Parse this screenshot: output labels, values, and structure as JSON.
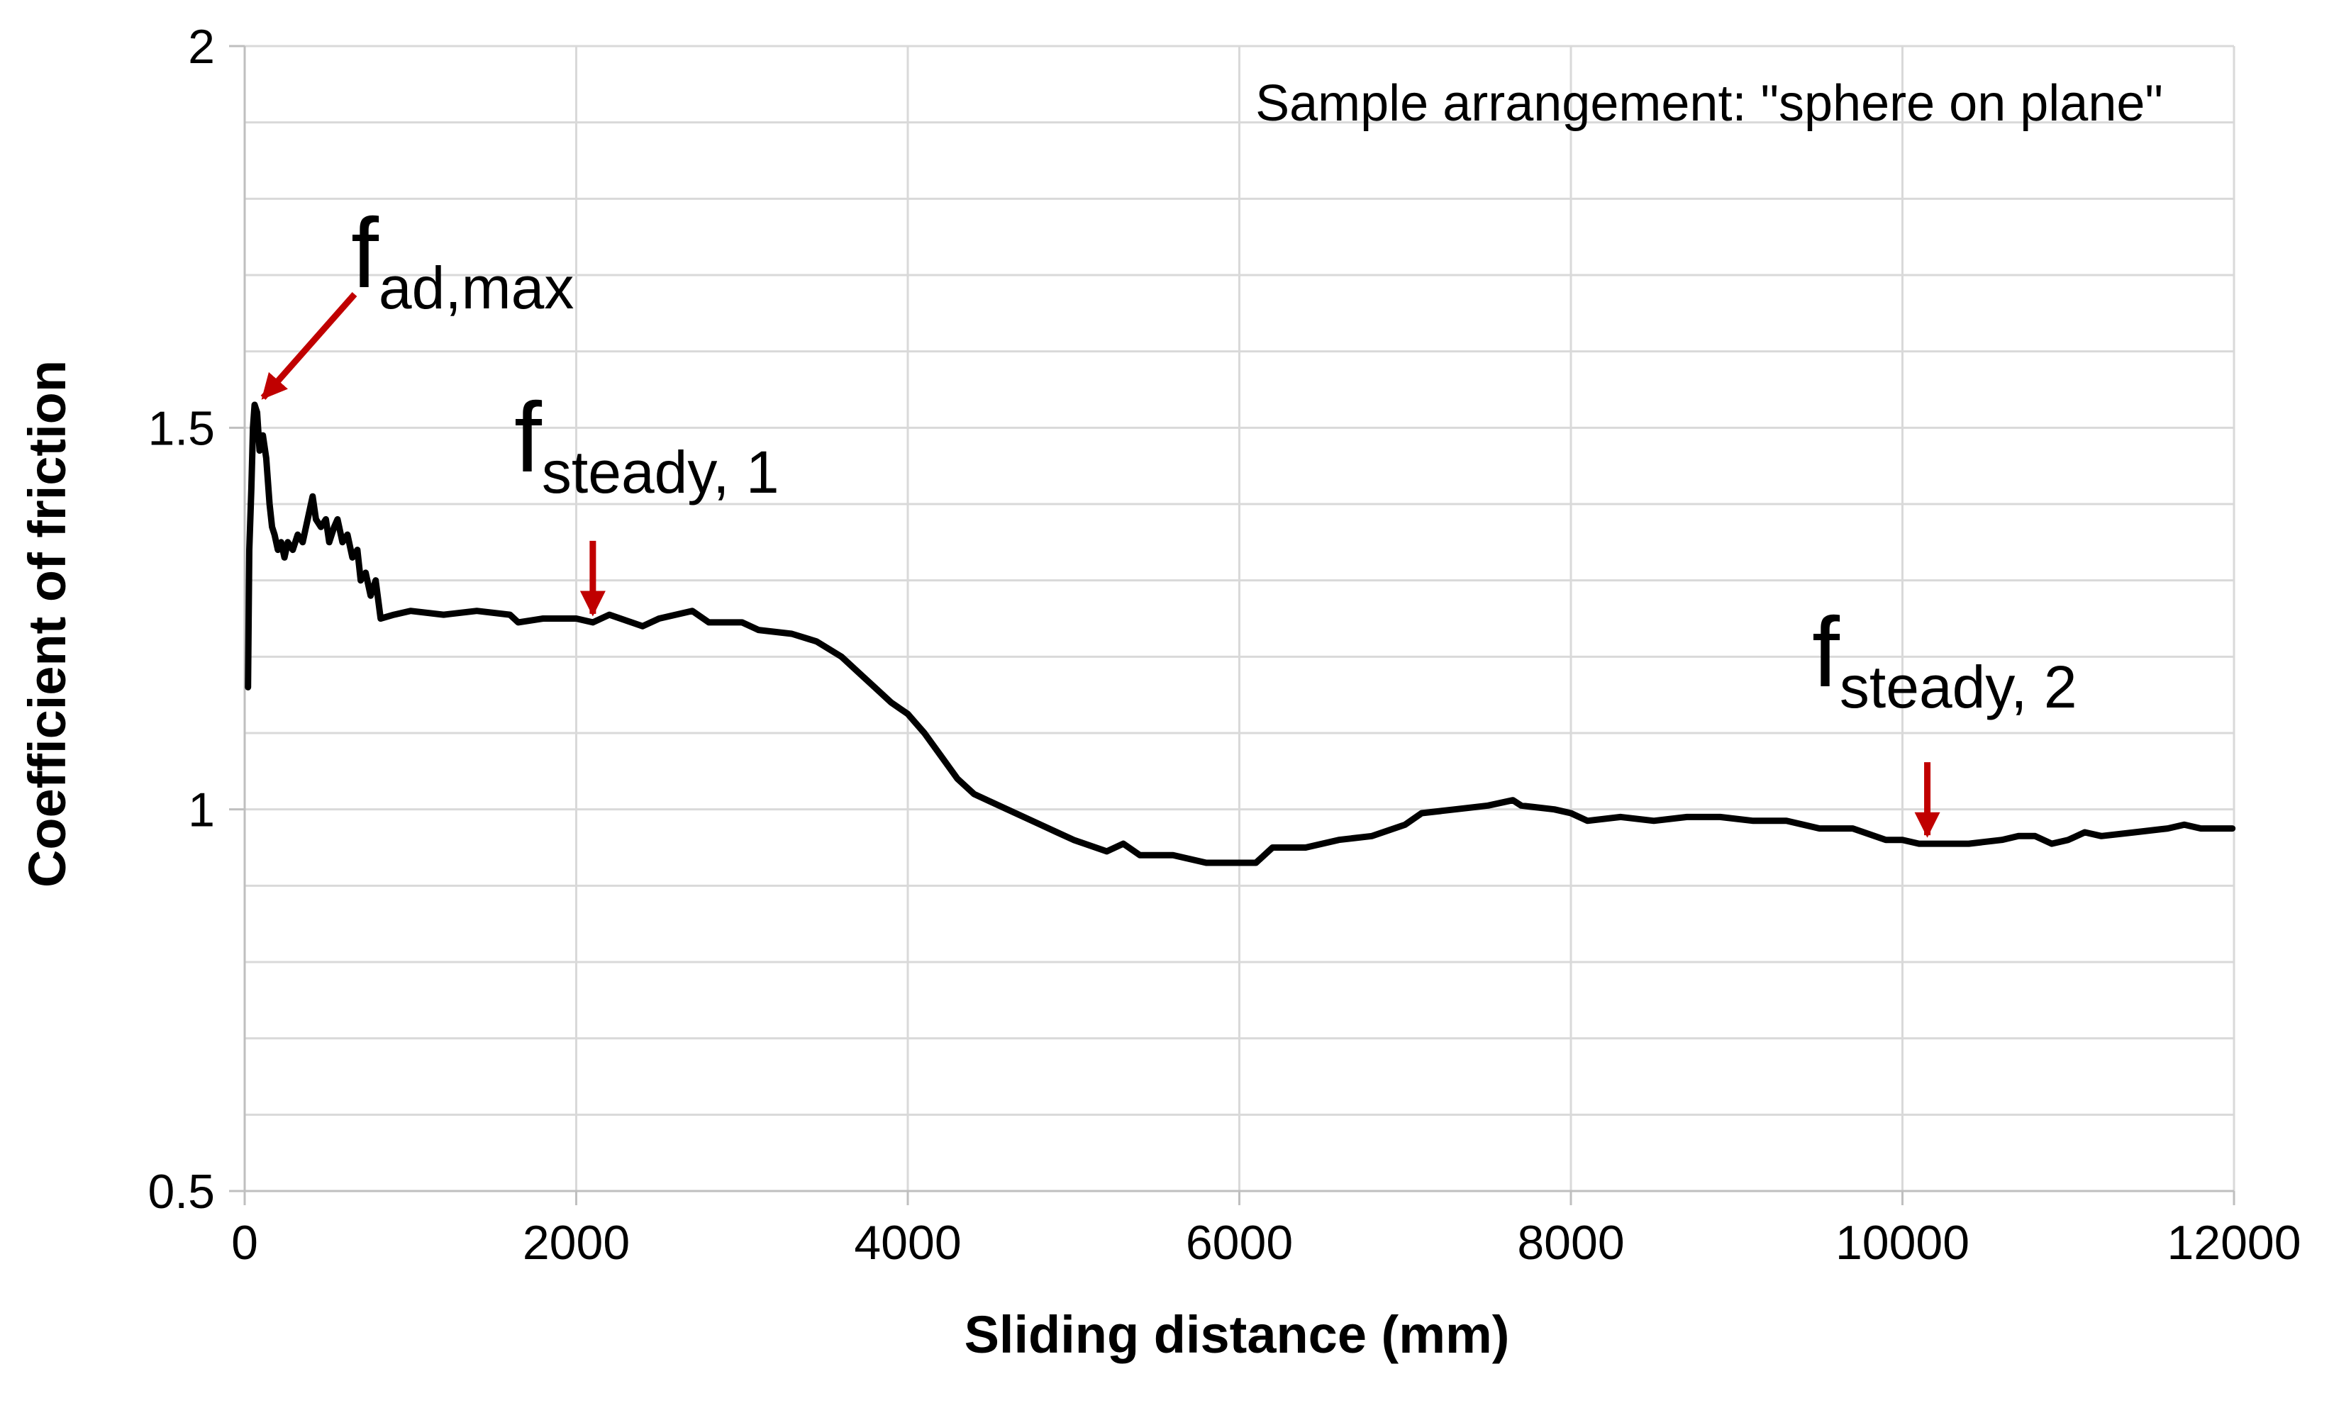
{
  "chart_data": {
    "type": "line",
    "title": "",
    "xlabel": "Sliding distance (mm)",
    "ylabel": "Coefficient of friction",
    "xlim": [
      0,
      12000
    ],
    "ylim": [
      0.5,
      2
    ],
    "xticks": [
      0,
      2000,
      4000,
      6000,
      8000,
      10000,
      12000
    ],
    "xtick_labels": [
      "0",
      "2000",
      "4000",
      "6000",
      "8000",
      "10000",
      "12000"
    ],
    "yticks": [
      0.5,
      1,
      1.5,
      2
    ],
    "ytick_labels": [
      "0.5",
      "1",
      "1.5",
      "2"
    ],
    "grid": true,
    "legend": "none",
    "note": "Sample arrangement: \"sphere on plane\"",
    "series": [
      {
        "name": "Coefficient of friction",
        "color": "#000000",
        "points": [
          [
            20,
            1.16
          ],
          [
            28,
            1.34
          ],
          [
            40,
            1.42
          ],
          [
            50,
            1.5
          ],
          [
            60,
            1.53
          ],
          [
            75,
            1.52
          ],
          [
            90,
            1.47
          ],
          [
            110,
            1.49
          ],
          [
            130,
            1.46
          ],
          [
            150,
            1.4
          ],
          [
            165,
            1.37
          ],
          [
            180,
            1.36
          ],
          [
            200,
            1.34
          ],
          [
            220,
            1.35
          ],
          [
            240,
            1.33
          ],
          [
            260,
            1.35
          ],
          [
            290,
            1.34
          ],
          [
            320,
            1.36
          ],
          [
            350,
            1.35
          ],
          [
            380,
            1.38
          ],
          [
            410,
            1.41
          ],
          [
            430,
            1.38
          ],
          [
            460,
            1.37
          ],
          [
            490,
            1.38
          ],
          [
            510,
            1.35
          ],
          [
            540,
            1.37
          ],
          [
            560,
            1.38
          ],
          [
            590,
            1.35
          ],
          [
            620,
            1.36
          ],
          [
            650,
            1.33
          ],
          [
            680,
            1.34
          ],
          [
            700,
            1.3
          ],
          [
            730,
            1.31
          ],
          [
            760,
            1.28
          ],
          [
            790,
            1.3
          ],
          [
            820,
            1.25
          ],
          [
            900,
            1.255
          ],
          [
            1000,
            1.26
          ],
          [
            1200,
            1.255
          ],
          [
            1400,
            1.26
          ],
          [
            1600,
            1.255
          ],
          [
            1650,
            1.245
          ],
          [
            1800,
            1.25
          ],
          [
            2000,
            1.25
          ],
          [
            2100,
            1.245
          ],
          [
            2200,
            1.255
          ],
          [
            2400,
            1.24
          ],
          [
            2500,
            1.25
          ],
          [
            2700,
            1.26
          ],
          [
            2800,
            1.245
          ],
          [
            3000,
            1.245
          ],
          [
            3100,
            1.235
          ],
          [
            3300,
            1.23
          ],
          [
            3450,
            1.22
          ],
          [
            3600,
            1.2
          ],
          [
            3700,
            1.18
          ],
          [
            3800,
            1.16
          ],
          [
            3900,
            1.14
          ],
          [
            4000,
            1.125
          ],
          [
            4100,
            1.1
          ],
          [
            4200,
            1.07
          ],
          [
            4300,
            1.04
          ],
          [
            4400,
            1.02
          ],
          [
            4600,
            1.0
          ],
          [
            4800,
            0.98
          ],
          [
            4900,
            0.97
          ],
          [
            5000,
            0.96
          ],
          [
            5200,
            0.945
          ],
          [
            5300,
            0.955
          ],
          [
            5400,
            0.94
          ],
          [
            5600,
            0.94
          ],
          [
            5800,
            0.93
          ],
          [
            6000,
            0.93
          ],
          [
            6100,
            0.93
          ],
          [
            6200,
            0.95
          ],
          [
            6400,
            0.95
          ],
          [
            6600,
            0.96
          ],
          [
            6800,
            0.965
          ],
          [
            7000,
            0.98
          ],
          [
            7100,
            0.995
          ],
          [
            7300,
            1.0
          ],
          [
            7500,
            1.005
          ],
          [
            7650,
            1.012
          ],
          [
            7700,
            1.005
          ],
          [
            7900,
            1.0
          ],
          [
            8000,
            0.995
          ],
          [
            8100,
            0.985
          ],
          [
            8300,
            0.99
          ],
          [
            8500,
            0.985
          ],
          [
            8700,
            0.99
          ],
          [
            8900,
            0.99
          ],
          [
            9100,
            0.985
          ],
          [
            9300,
            0.985
          ],
          [
            9500,
            0.975
          ],
          [
            9700,
            0.975
          ],
          [
            9900,
            0.96
          ],
          [
            10000,
            0.96
          ],
          [
            10100,
            0.955
          ],
          [
            10200,
            0.955
          ],
          [
            10400,
            0.955
          ],
          [
            10600,
            0.96
          ],
          [
            10700,
            0.965
          ],
          [
            10800,
            0.965
          ],
          [
            10900,
            0.955
          ],
          [
            11000,
            0.96
          ],
          [
            11100,
            0.97
          ],
          [
            11200,
            0.965
          ],
          [
            11400,
            0.97
          ],
          [
            11600,
            0.975
          ],
          [
            11700,
            0.98
          ],
          [
            11800,
            0.975
          ],
          [
            11990,
            0.975
          ]
        ]
      }
    ],
    "annotations": [
      {
        "main": "f",
        "sub": "ad,max",
        "color": "#c00000",
        "arrow_target": [
          60,
          1.53
        ]
      },
      {
        "main": "f",
        "sub": "steady, 1",
        "color": "#c00000",
        "arrow_target": [
          2100,
          1.245
        ]
      },
      {
        "main": "f",
        "sub": "steady, 2",
        "color": "#c00000",
        "arrow_target": [
          10150,
          0.955
        ]
      }
    ]
  }
}
